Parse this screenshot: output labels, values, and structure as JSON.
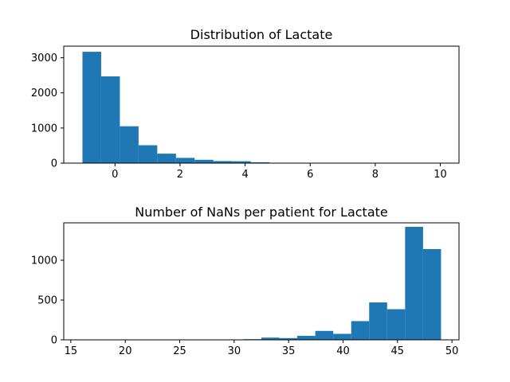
{
  "chart_data": [
    {
      "type": "bar",
      "title": "Distribution of Lactate",
      "xlabel": "",
      "ylabel": "",
      "xlim": [
        -1.575,
        10.575
      ],
      "ylim": [
        0,
        3330
      ],
      "xticks": [
        0,
        2,
        4,
        6,
        8,
        10
      ],
      "yticks": [
        0,
        1000,
        2000,
        3000
      ],
      "bin_edges": [
        -1.0,
        -0.425,
        0.15,
        0.725,
        1.3,
        1.875,
        2.45,
        3.025,
        3.6,
        4.175,
        4.75,
        5.325,
        5.9,
        6.475,
        7.05,
        7.625,
        8.2,
        8.775,
        9.35,
        9.925,
        10.5
      ],
      "values": [
        3170,
        2470,
        1050,
        510,
        270,
        150,
        95,
        60,
        55,
        25,
        8,
        5,
        3,
        2,
        1,
        1,
        1,
        0,
        0,
        1
      ],
      "color": "#1f77b4"
    },
    {
      "type": "bar",
      "title": "Number of NaNs per patient for Lactate",
      "xlabel": "",
      "ylabel": "",
      "xlim": [
        14.35,
        50.65
      ],
      "ylim": [
        0,
        1470
      ],
      "xticks": [
        15,
        20,
        25,
        30,
        35,
        40,
        45,
        50
      ],
      "yticks": [
        0,
        500,
        1000
      ],
      "bin_edges": [
        16.0,
        17.65,
        19.3,
        20.95,
        22.6,
        24.25,
        25.9,
        27.55,
        29.2,
        30.85,
        32.5,
        34.15,
        35.8,
        37.45,
        39.1,
        40.75,
        42.4,
        44.05,
        45.7,
        47.35,
        49.0
      ],
      "values": [
        1,
        0,
        0,
        0,
        0,
        1,
        5,
        1,
        1,
        8,
        28,
        22,
        50,
        112,
        75,
        235,
        470,
        385,
        1420,
        1140
      ],
      "color": "#1f77b4"
    }
  ]
}
